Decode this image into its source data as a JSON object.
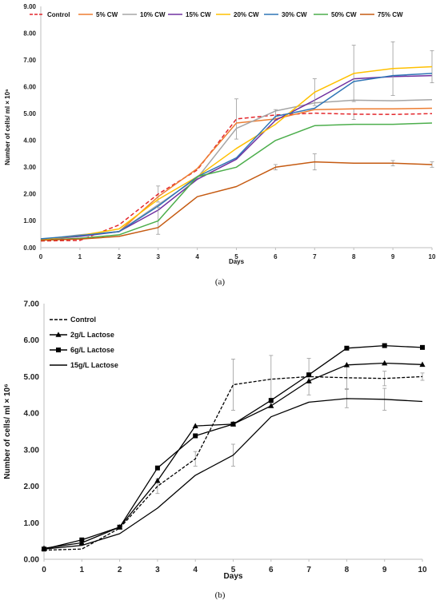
{
  "chart_data": [
    {
      "type": "line",
      "caption": "(a)",
      "xlabel": "Days",
      "ylabel": "Number of cells/ ml × 10⁶",
      "x": [
        0,
        1,
        2,
        3,
        4,
        5,
        6,
        7,
        8,
        9,
        10
      ],
      "xlim": [
        0,
        10
      ],
      "ylim": [
        0,
        9
      ],
      "yticks": [
        "0.00",
        "1.00",
        "2.00",
        "3.00",
        "4.00",
        "5.00",
        "6.00",
        "7.00",
        "8.00",
        "9.00"
      ],
      "xticks": [
        "0",
        "1",
        "2",
        "3",
        "4",
        "5",
        "6",
        "7",
        "8",
        "9",
        "10"
      ],
      "grid": false,
      "legend": "top",
      "series": [
        {
          "name": "Control",
          "color": "#e3262b",
          "dashed": true,
          "values": [
            0.25,
            0.27,
            0.85,
            2.0,
            2.9,
            4.8,
            4.95,
            5.02,
            4.98,
            4.97,
            5.0
          ],
          "errors": [
            0,
            0,
            0,
            0.3,
            0,
            0.75,
            0.2,
            0,
            0.2,
            0,
            0
          ]
        },
        {
          "name": "5% CW",
          "color": "#ed7d31",
          "values": [
            0.3,
            0.45,
            0.6,
            1.9,
            2.95,
            4.65,
            4.8,
            5.15,
            5.18,
            5.18,
            5.2
          ],
          "errors": [
            0,
            0,
            0,
            0,
            0,
            0,
            0,
            0,
            0,
            0,
            0
          ]
        },
        {
          "name": "10% CW",
          "color": "#a5a5a5",
          "values": [
            0.3,
            0.48,
            0.6,
            1.6,
            2.6,
            4.45,
            5.1,
            5.4,
            5.5,
            5.48,
            5.52
          ],
          "errors": [
            0,
            0,
            0,
            0,
            0,
            0,
            0,
            0,
            0,
            0,
            0
          ]
        },
        {
          "name": "15% CW",
          "color": "#7030a0",
          "values": [
            0.3,
            0.42,
            0.6,
            1.4,
            2.55,
            3.3,
            4.75,
            5.5,
            6.3,
            6.38,
            6.42
          ],
          "errors": [
            0,
            0,
            0,
            0,
            0,
            0,
            0,
            0,
            0,
            0,
            0
          ]
        },
        {
          "name": "20% CW",
          "color": "#ffc000",
          "values": [
            0.3,
            0.45,
            0.7,
            1.8,
            2.65,
            3.7,
            4.6,
            5.8,
            6.5,
            6.68,
            6.75
          ],
          "errors": [
            0,
            0,
            0,
            0,
            0,
            0,
            0,
            0.5,
            1.05,
            1.0,
            0.6
          ]
        },
        {
          "name": "30% CW",
          "color": "#2e75b6",
          "values": [
            0.33,
            0.45,
            0.6,
            1.55,
            2.65,
            3.35,
            4.9,
            5.2,
            6.2,
            6.42,
            6.5
          ],
          "errors": [
            0,
            0,
            0,
            0,
            0,
            0,
            0,
            0,
            0,
            0,
            0
          ]
        },
        {
          "name": "50% CW",
          "color": "#4cae4c",
          "values": [
            0.28,
            0.35,
            0.48,
            1.0,
            2.65,
            3.0,
            4.0,
            4.55,
            4.6,
            4.6,
            4.65
          ],
          "errors": [
            0,
            0,
            0,
            0.5,
            0,
            0,
            0,
            0,
            0,
            0,
            0
          ]
        },
        {
          "name": "75% CW",
          "color": "#c55a11",
          "values": [
            0.28,
            0.32,
            0.42,
            0.75,
            1.9,
            2.28,
            3.0,
            3.2,
            3.15,
            3.15,
            3.1
          ],
          "errors": [
            0,
            0,
            0,
            0,
            0,
            0,
            0.1,
            0.3,
            0,
            0.1,
            0.1
          ]
        }
      ]
    },
    {
      "type": "line",
      "caption": "(b)",
      "xlabel": "Days",
      "ylabel": "Number of cells/ ml × 10⁶",
      "x": [
        0,
        1,
        2,
        3,
        4,
        5,
        6,
        7,
        8,
        9,
        10
      ],
      "xlim": [
        0,
        10
      ],
      "ylim": [
        0,
        7
      ],
      "yticks": [
        "0.00",
        "1.00",
        "2.00",
        "3.00",
        "4.00",
        "5.00",
        "6.00",
        "7.00"
      ],
      "xticks": [
        "0",
        "1",
        "2",
        "3",
        "4",
        "5",
        "6",
        "7",
        "8",
        "9",
        "10"
      ],
      "grid": false,
      "legend": "top-left",
      "series": [
        {
          "name": "Control",
          "color": "#000000",
          "dashed": true,
          "marker": "none",
          "values": [
            0.25,
            0.28,
            0.85,
            2.0,
            2.75,
            4.78,
            4.93,
            5.0,
            4.97,
            4.95,
            5.0
          ],
          "errors": [
            0,
            0,
            0,
            0.2,
            0.2,
            0.7,
            0.65,
            0.5,
            0.3,
            0.2,
            0.1
          ]
        },
        {
          "name": "2g/L Lactose",
          "color": "#000000",
          "marker": "triangle",
          "values": [
            0.3,
            0.45,
            0.88,
            2.15,
            3.65,
            3.7,
            4.2,
            4.88,
            5.32,
            5.37,
            5.33
          ],
          "errors": [
            0,
            0,
            0,
            0,
            0,
            0,
            0,
            0,
            0,
            0,
            0
          ]
        },
        {
          "name": "6g/L Lactose",
          "color": "#000000",
          "marker": "square",
          "values": [
            0.28,
            0.53,
            0.88,
            2.5,
            3.38,
            3.7,
            4.35,
            5.05,
            5.78,
            5.85,
            5.8
          ],
          "errors": [
            0,
            0,
            0,
            0,
            0,
            0,
            0,
            0,
            0,
            0,
            0
          ]
        },
        {
          "name": "15g/L Lactose",
          "color": "#000000",
          "marker": "none",
          "values": [
            0.28,
            0.38,
            0.7,
            1.4,
            2.3,
            2.85,
            3.9,
            4.3,
            4.4,
            4.38,
            4.32
          ],
          "errors": [
            0,
            0,
            0,
            0,
            0,
            0.3,
            0,
            0,
            0.25,
            0.3,
            0
          ]
        }
      ]
    }
  ]
}
